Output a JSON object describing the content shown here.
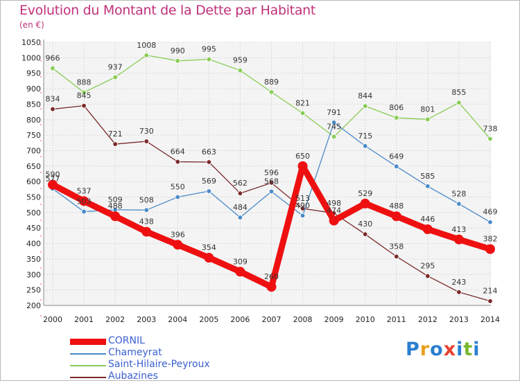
{
  "title": "Evolution du Montant de la Dette par Habitant",
  "unit": "(en €)",
  "logo": {
    "letters": [
      "P",
      "r",
      "o",
      "x",
      "i",
      "t",
      "i"
    ],
    "colors": [
      "#2a7fd0",
      "#e8a020",
      "#2a7fd0",
      "#e84030",
      "#2a7fd0",
      "#7ab830",
      "#2a7fd0"
    ]
  },
  "chart_data": {
    "type": "line",
    "title": "Evolution du Montant de la Dette par Habitant",
    "ylabel": "(en €)",
    "xlabel": "",
    "x": [
      "2000",
      "2001",
      "2002",
      "2003",
      "2004",
      "2005",
      "2006",
      "2007",
      "2008",
      "2009",
      "2010",
      "2011",
      "2012",
      "2013",
      "2014"
    ],
    "ylim": [
      200,
      1050
    ],
    "yticks": [
      200,
      250,
      300,
      350,
      400,
      450,
      500,
      550,
      600,
      650,
      700,
      750,
      800,
      850,
      900,
      950,
      1000,
      1050
    ],
    "grid": true,
    "legend": "bottom-left",
    "series": [
      {
        "name": "CORNIL",
        "color": "#ee1010",
        "values": [
          590,
          537,
          488,
          438,
          396,
          354,
          309,
          260,
          650,
          474,
          529,
          488,
          446,
          413,
          382
        ],
        "labels": [
          "590",
          "537",
          "488",
          "438",
          "396",
          "354",
          "309",
          "260",
          "650",
          "474",
          "529",
          "488",
          "446",
          "413",
          "382"
        ]
      },
      {
        "name": "Chameyrat",
        "color": "#4a8ac8",
        "values": [
          577,
          503,
          509,
          508,
          550,
          569,
          484,
          568,
          490,
          791,
          715,
          649,
          585,
          528,
          469
        ],
        "labels": [
          "577",
          "503",
          "509",
          "508",
          "550",
          "569",
          "484",
          "568",
          "490",
          "791",
          "715",
          "649",
          "585",
          "528",
          "469"
        ]
      },
      {
        "name": "Saint-Hilaire-Peyroux",
        "color": "#88cc55",
        "values": [
          966,
          888,
          937,
          1008,
          990,
          995,
          959,
          889,
          821,
          745,
          844,
          806,
          801,
          855,
          738
        ],
        "labels": [
          "966",
          "888",
          "937",
          "1008",
          "990",
          "995",
          "959",
          "889",
          "821",
          "745",
          "844",
          "806",
          "801",
          "855",
          "738"
        ]
      },
      {
        "name": "Aubazines",
        "color": "#7a2a2a",
        "values": [
          834,
          845,
          721,
          730,
          664,
          663,
          562,
          596,
          513,
          498,
          430,
          358,
          295,
          243,
          214
        ],
        "labels": [
          "834",
          "845",
          "721",
          "730",
          "664",
          "663",
          "562",
          "596",
          "513",
          "498",
          "430",
          "358",
          "295",
          "243",
          "214"
        ]
      }
    ]
  }
}
